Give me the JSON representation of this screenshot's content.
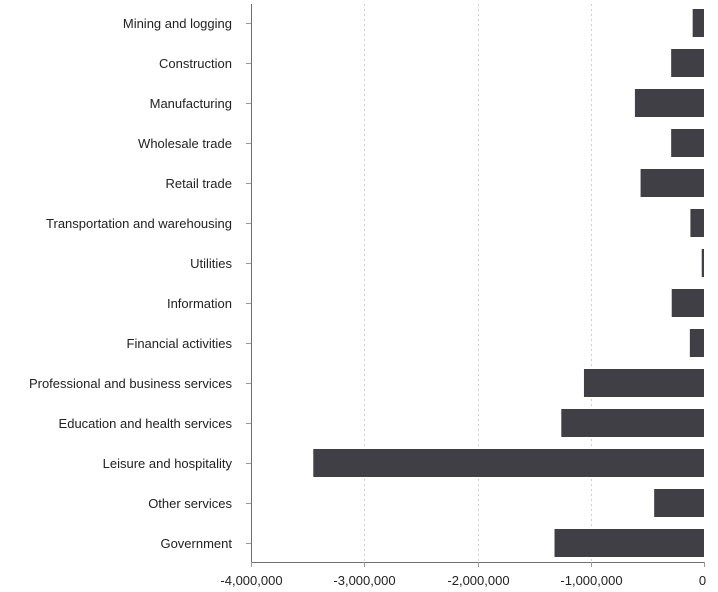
{
  "chart_data": {
    "type": "bar",
    "orientation": "horizontal",
    "title": "",
    "xlabel": "",
    "ylabel": "",
    "categories": [
      "Mining and logging",
      "Construction",
      "Manufacturing",
      "Wholesale trade",
      "Retail trade",
      "Transportation and warehousing",
      "Utilities",
      "Information",
      "Financial activities",
      "Professional and business services",
      "Education and health services",
      "Leisure and hospitality",
      "Other services",
      "Government"
    ],
    "values": [
      -100000,
      -290000,
      -610000,
      -290000,
      -560000,
      -120000,
      -20000,
      -285000,
      -125000,
      -1060000,
      -1260000,
      -3450000,
      -440000,
      -1320000
    ],
    "xlim": [
      -4000000,
      0
    ],
    "xticks": [
      -4000000,
      -3000000,
      -2000000,
      -1000000,
      0
    ],
    "xtick_labels": [
      "-4,000,000",
      "-3,000,000",
      "-2,000,000",
      "-1,000,000",
      "0"
    ],
    "bar_color": "#3f3f45",
    "grid": true
  }
}
